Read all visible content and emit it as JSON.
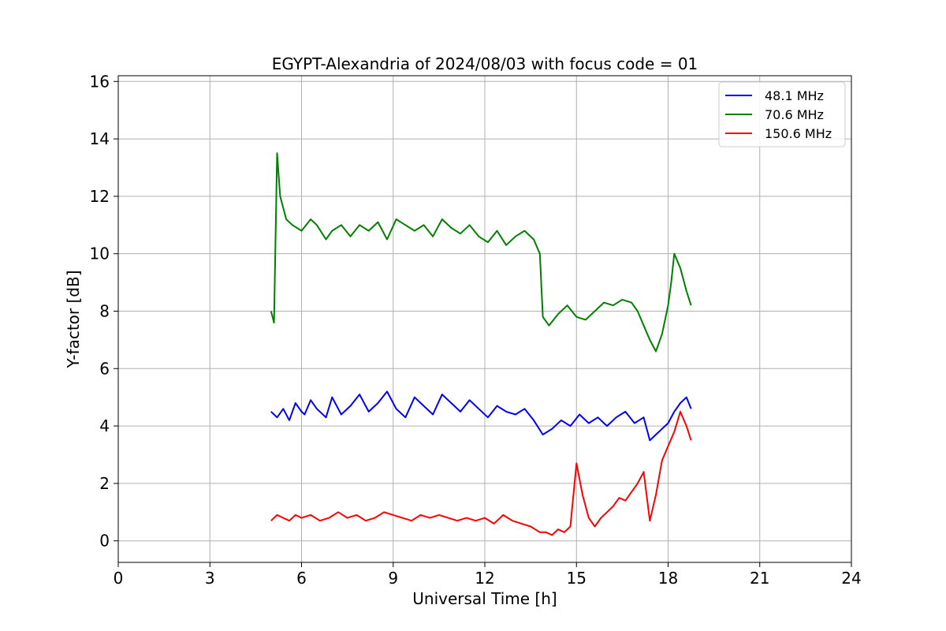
{
  "chart_data": {
    "type": "line",
    "title": "EGYPT-Alexandria of 2024/08/03 with focus code = 01",
    "xlabel": "Universal Time [h]",
    "ylabel": "Y-factor [dB]",
    "xlim": [
      0,
      24
    ],
    "ylim": [
      -0.75,
      16.2
    ],
    "xticks": [
      0,
      3,
      6,
      9,
      12,
      15,
      18,
      21,
      24
    ],
    "xtick_labels": [
      "0",
      "3",
      "6",
      "9",
      "12",
      "15",
      "18",
      "21",
      "24"
    ],
    "yticks": [
      0,
      2,
      4,
      6,
      8,
      10,
      12,
      14,
      16
    ],
    "ytick_labels": [
      "0",
      "2",
      "4",
      "6",
      "8",
      "10",
      "12",
      "14",
      "16"
    ],
    "grid": true,
    "legend_position": "top-right",
    "series": [
      {
        "name": " 48.1 MHz",
        "color": "#0000ff",
        "x": [
          5.0,
          5.2,
          5.4,
          5.6,
          5.8,
          6.0,
          6.1,
          6.3,
          6.5,
          6.8,
          7.0,
          7.3,
          7.6,
          7.9,
          8.2,
          8.5,
          8.8,
          9.1,
          9.4,
          9.7,
          10.0,
          10.3,
          10.6,
          10.9,
          11.2,
          11.5,
          11.8,
          12.1,
          12.4,
          12.7,
          13.0,
          13.3,
          13.6,
          13.9,
          14.2,
          14.5,
          14.8,
          15.1,
          15.4,
          15.7,
          16.0,
          16.3,
          16.6,
          16.9,
          17.2,
          17.4,
          17.6,
          17.8,
          18.0,
          18.2,
          18.4,
          18.6,
          18.75
        ],
        "y": [
          4.5,
          4.3,
          4.6,
          4.2,
          4.8,
          4.5,
          4.4,
          4.9,
          4.6,
          4.3,
          5.0,
          4.4,
          4.7,
          5.1,
          4.5,
          4.8,
          5.2,
          4.6,
          4.3,
          5.0,
          4.7,
          4.4,
          5.1,
          4.8,
          4.5,
          4.9,
          4.6,
          4.3,
          4.7,
          4.5,
          4.4,
          4.6,
          4.2,
          3.7,
          3.9,
          4.2,
          4.0,
          4.4,
          4.1,
          4.3,
          4.0,
          4.3,
          4.5,
          4.1,
          4.3,
          3.5,
          3.7,
          3.9,
          4.1,
          4.5,
          4.8,
          5.0,
          4.6
        ]
      },
      {
        "name": " 70.6 MHz",
        "color": "#008000",
        "x": [
          5.0,
          5.1,
          5.2,
          5.3,
          5.5,
          5.7,
          6.0,
          6.3,
          6.5,
          6.8,
          7.0,
          7.3,
          7.6,
          7.9,
          8.2,
          8.5,
          8.8,
          9.1,
          9.4,
          9.7,
          10.0,
          10.3,
          10.6,
          10.9,
          11.2,
          11.5,
          11.8,
          12.1,
          12.4,
          12.7,
          13.0,
          13.3,
          13.6,
          13.8,
          13.9,
          14.1,
          14.4,
          14.7,
          15.0,
          15.3,
          15.6,
          15.9,
          16.2,
          16.5,
          16.8,
          17.0,
          17.2,
          17.4,
          17.6,
          17.8,
          18.0,
          18.1,
          18.2,
          18.4,
          18.6,
          18.75
        ],
        "y": [
          8.0,
          7.6,
          13.5,
          12.0,
          11.2,
          11.0,
          10.8,
          11.2,
          11.0,
          10.5,
          10.8,
          11.0,
          10.6,
          11.0,
          10.8,
          11.1,
          10.5,
          11.2,
          11.0,
          10.8,
          11.0,
          10.6,
          11.2,
          10.9,
          10.7,
          11.0,
          10.6,
          10.4,
          10.8,
          10.3,
          10.6,
          10.8,
          10.5,
          10.0,
          7.8,
          7.5,
          7.9,
          8.2,
          7.8,
          7.7,
          8.0,
          8.3,
          8.2,
          8.4,
          8.3,
          8.0,
          7.5,
          7.0,
          6.6,
          7.2,
          8.2,
          9.0,
          10.0,
          9.5,
          8.7,
          8.2
        ]
      },
      {
        "name": " 150.6 MHz",
        "color": "#ff0000",
        "x": [
          5.0,
          5.2,
          5.4,
          5.6,
          5.8,
          6.0,
          6.3,
          6.6,
          6.9,
          7.2,
          7.5,
          7.8,
          8.1,
          8.4,
          8.7,
          9.0,
          9.3,
          9.6,
          9.9,
          10.2,
          10.5,
          10.8,
          11.1,
          11.4,
          11.7,
          12.0,
          12.3,
          12.6,
          12.9,
          13.2,
          13.5,
          13.8,
          14.0,
          14.2,
          14.4,
          14.6,
          14.8,
          15.0,
          15.2,
          15.4,
          15.6,
          15.8,
          16.0,
          16.2,
          16.4,
          16.6,
          16.8,
          17.0,
          17.2,
          17.4,
          17.6,
          17.8,
          18.0,
          18.2,
          18.4,
          18.6,
          18.75
        ],
        "y": [
          0.7,
          0.9,
          0.8,
          0.7,
          0.9,
          0.8,
          0.9,
          0.7,
          0.8,
          1.0,
          0.8,
          0.9,
          0.7,
          0.8,
          1.0,
          0.9,
          0.8,
          0.7,
          0.9,
          0.8,
          0.9,
          0.8,
          0.7,
          0.8,
          0.7,
          0.8,
          0.6,
          0.9,
          0.7,
          0.6,
          0.5,
          0.3,
          0.3,
          0.2,
          0.4,
          0.3,
          0.5,
          2.7,
          1.6,
          0.8,
          0.5,
          0.8,
          1.0,
          1.2,
          1.5,
          1.4,
          1.7,
          2.0,
          2.4,
          0.7,
          1.6,
          2.8,
          3.3,
          3.8,
          4.5,
          4.0,
          3.5
        ]
      }
    ]
  }
}
